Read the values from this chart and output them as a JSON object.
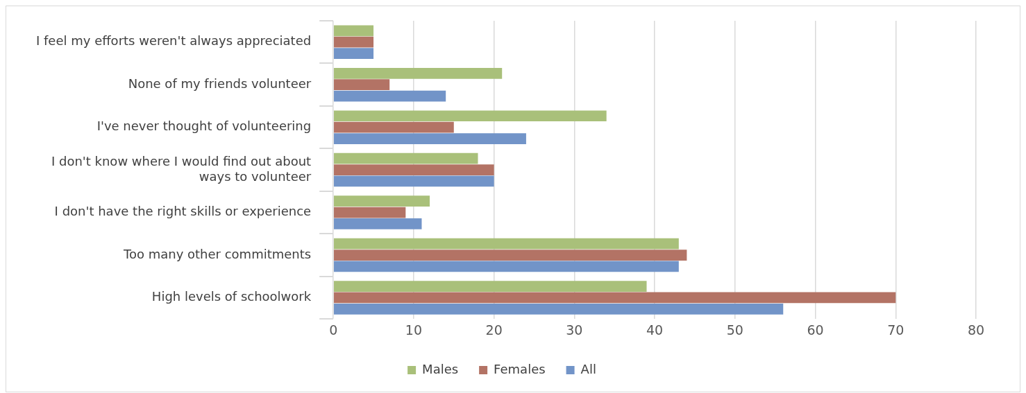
{
  "chart_data": {
    "type": "bar",
    "orientation": "horizontal",
    "categories": [
      "I feel my efforts weren't always appreciated",
      "None of my friends volunteer",
      "I've never thought of volunteering",
      "I don't know where I would find out about ways to volunteer",
      "I don't have the right skills or experience",
      "Too many other commitments",
      "High levels of schoolwork"
    ],
    "series": [
      {
        "name": "Males",
        "color": "#a9c07a",
        "values": [
          5,
          21,
          34,
          18,
          12,
          43,
          39
        ]
      },
      {
        "name": "Females",
        "color": "#b37365",
        "values": [
          5,
          7,
          15,
          20,
          9,
          44,
          70
        ]
      },
      {
        "name": "All",
        "color": "#7294c8",
        "values": [
          5,
          14,
          24,
          20,
          11,
          43,
          56
        ]
      }
    ],
    "xlim": [
      0,
      80
    ],
    "xticks": [
      0,
      10,
      20,
      30,
      40,
      50,
      60,
      70,
      80
    ],
    "grid": "x",
    "legend": "bottom"
  }
}
